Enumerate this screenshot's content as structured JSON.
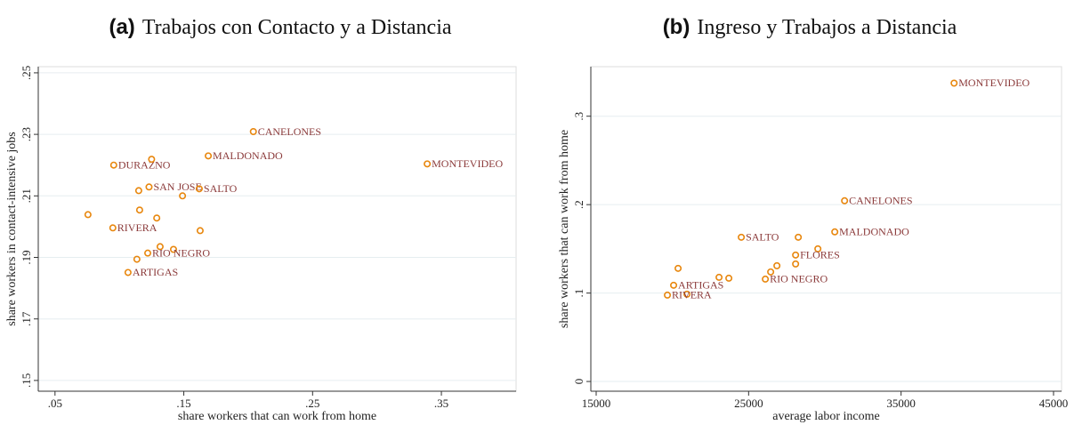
{
  "chart_data": [
    {
      "type": "scatter",
      "panel": "(a)",
      "title": "Trabajos con Contacto y a Distancia",
      "x_label": "share workers that can work from home",
      "y_label": "share workers in contact-intensive jobs",
      "xlim": [
        0.037,
        0.408
      ],
      "ylim": [
        0.1465,
        0.252
      ],
      "xticks": [
        {
          "value": 0.05,
          "label": ".05"
        },
        {
          "value": 0.15,
          "label": ".15"
        },
        {
          "value": 0.25,
          "label": ".25"
        },
        {
          "value": 0.35,
          "label": ".35"
        }
      ],
      "yticks": [
        {
          "value": 0.15,
          "label": ".15"
        },
        {
          "value": 0.17,
          "label": ".17"
        },
        {
          "value": 0.19,
          "label": ".19"
        },
        {
          "value": 0.21,
          "label": ".21"
        },
        {
          "value": 0.23,
          "label": ".23"
        },
        {
          "value": 0.25,
          "label": ".25"
        }
      ],
      "grid": true,
      "series": [
        {
          "color": "#e8870e",
          "x": [
            0.204,
            0.169,
            0.339,
            0.0956,
            0.125,
            0.123,
            0.115,
            0.162,
            0.149,
            0.0756,
            0.1157,
            0.129,
            0.0949,
            0.1627,
            0.1316,
            0.142,
            0.122,
            0.1136,
            0.1067
          ],
          "values": [
            0.2309,
            0.223,
            0.2204,
            0.22,
            0.2219,
            0.2129,
            0.2117,
            0.2123,
            0.21,
            0.2039,
            0.2054,
            0.2028,
            0.1996,
            0.1987,
            0.1935,
            0.1926,
            0.1914,
            0.1894,
            0.1851
          ],
          "labels": [
            "CANELONES",
            "MALDONADO",
            "MONTEVIDEO",
            "DURAZNO",
            null,
            "SAN JOSE",
            null,
            "SALTO",
            null,
            null,
            null,
            null,
            "RIVERA",
            null,
            null,
            null,
            "RIO NEGRO",
            null,
            "ARTIGAS"
          ]
        }
      ]
    },
    {
      "type": "scatter",
      "panel": "(b)",
      "title": "Ingreso y Trabajos a Distancia",
      "x_label": "average labor income",
      "y_label": "share workers that can work from home",
      "xlim": [
        14650,
        45525
      ],
      "ylim": [
        -0.011,
        0.356
      ],
      "xticks": [
        15000,
        25000,
        35000,
        45000
      ],
      "yticks": [
        0,
        {
          "value": 0.1,
          "label": ".1"
        },
        {
          "value": 0.2,
          "label": ".2"
        },
        {
          "value": 0.3,
          "label": ".3"
        }
      ],
      "grid": true,
      "series": [
        {
          "color": "#e8870e",
          "x": [
            38477,
            31294,
            30651,
            24519,
            28257,
            29542,
            28082,
            28082,
            26855,
            26446,
            26096,
            20373,
            23059,
            23702,
            20081,
            20957,
            19672
          ],
          "values": [
            0.3374,
            0.2044,
            0.1692,
            0.1631,
            0.1631,
            0.15,
            0.143,
            0.1329,
            0.1309,
            0.1239,
            0.1158,
            0.1279,
            0.1178,
            0.1168,
            0.1088,
            0.0987,
            0.0977
          ],
          "labels": [
            "MONTEVIDEO",
            "CANELONES",
            "MALDONADO",
            "SALTO",
            null,
            null,
            "FLORES",
            null,
            null,
            null,
            "RIO NEGRO",
            null,
            null,
            null,
            "ARTIGAS",
            null,
            "RIVERA"
          ]
        }
      ]
    }
  ]
}
